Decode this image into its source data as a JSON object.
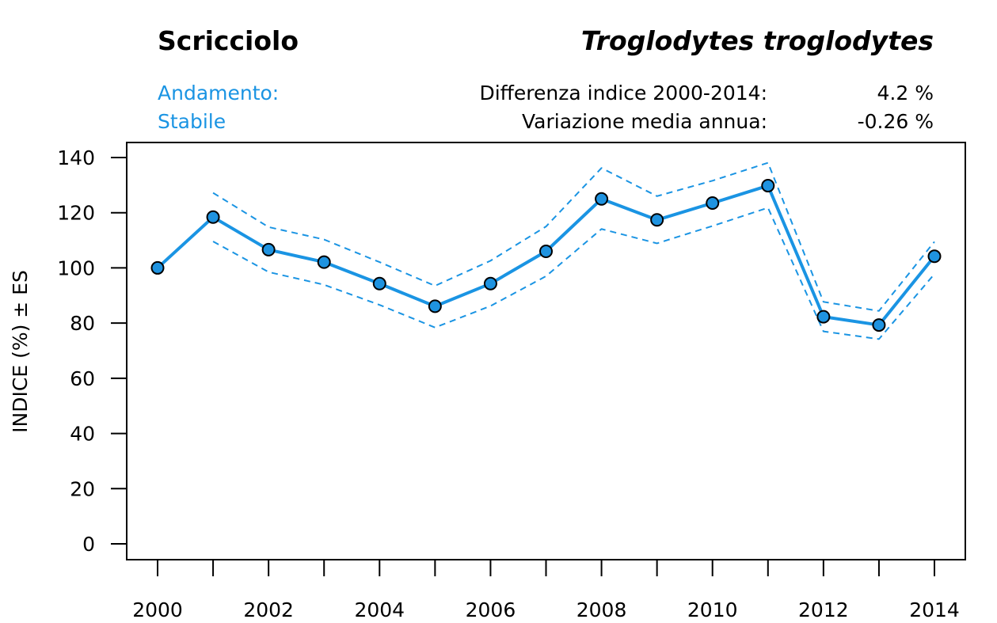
{
  "header": {
    "common_name": "Scricciolo",
    "scientific_name": "Troglodytes troglodytes",
    "trend_label": "Andamento:",
    "trend_value": "Stabile",
    "diff_label": "Differenza indice 2000-2014:",
    "diff_value": "4.2 %",
    "annual_label": "Variazione media annua:",
    "annual_value": "-0.26 %"
  },
  "colors": {
    "series": "#1a94e3",
    "point_fill": "#1f93e0",
    "text_blue": "#1a94e3"
  },
  "chart_data": {
    "type": "line",
    "title": "",
    "xlabel": "",
    "ylabel": "INDICE (%) ± ES",
    "x": [
      2000,
      2001,
      2002,
      2003,
      2004,
      2005,
      2006,
      2007,
      2008,
      2009,
      2010,
      2011,
      2012,
      2013,
      2014
    ],
    "xlim": [
      2000,
      2014
    ],
    "ylim": [
      0,
      140
    ],
    "yticks": [
      0,
      20,
      40,
      60,
      80,
      100,
      120,
      140
    ],
    "xtick_labels": [
      "2000",
      "2002",
      "2004",
      "2006",
      "2008",
      "2010",
      "2012",
      "2014"
    ],
    "series": [
      {
        "name": "Indice",
        "style": "solid-with-points",
        "values": [
          100,
          118.4,
          106.6,
          102.1,
          94.3,
          86.1,
          94.3,
          106.0,
          125.0,
          117.4,
          123.5,
          129.8,
          82.3,
          79.3,
          104.2
        ]
      },
      {
        "name": "Indice + ES",
        "style": "dashed",
        "values": [
          null,
          127.2,
          114.8,
          110.3,
          102.1,
          93.5,
          102.6,
          115.0,
          136.2,
          126.0,
          131.6,
          138.1,
          87.7,
          84.4,
          109.5
        ]
      },
      {
        "name": "Indice - ES",
        "style": "dashed",
        "values": [
          null,
          109.6,
          98.5,
          93.9,
          86.6,
          78.4,
          86.2,
          97.0,
          114.1,
          108.9,
          115.2,
          121.8,
          77.0,
          74.2,
          97.8
        ]
      }
    ],
    "grid": false
  }
}
